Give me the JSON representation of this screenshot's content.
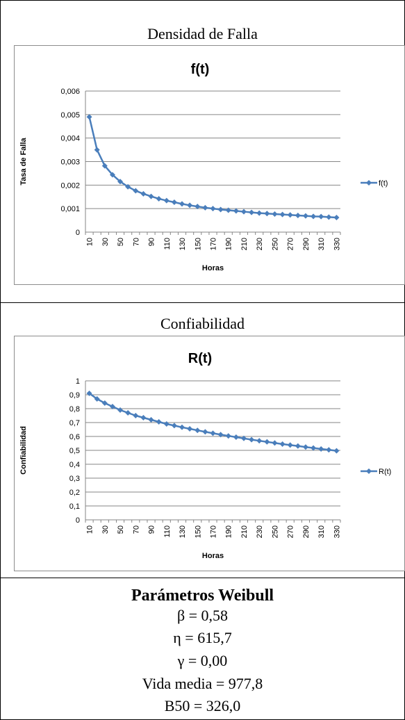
{
  "sections": {
    "density_caption": "Densidad de Falla",
    "reliability_caption": "Confiabilidad"
  },
  "parameters": {
    "title": "Parámetros Weibull",
    "beta": "β = 0,58",
    "eta": "η = 615,7",
    "gamma": "γ = 0,00",
    "mean_life": "Vida media = 977,8",
    "b50": "B50 = 326,0"
  },
  "colors": {
    "series": "#4a7ebb",
    "grid": "#868686",
    "axis": "#868686"
  },
  "chart_data": [
    {
      "type": "line",
      "title": "f(t)",
      "xlabel": "Horas",
      "ylabel": "Tasa de Falla",
      "legend": "right",
      "grid": true,
      "ylim": [
        0,
        0.006
      ],
      "yticks": [
        0,
        0.001,
        0.002,
        0.003,
        0.004,
        0.005,
        0.006
      ],
      "ytick_labels": [
        "0",
        "0,001",
        "0,002",
        "0,003",
        "0,004",
        "0,005",
        "0,006"
      ],
      "x": [
        10,
        20,
        30,
        40,
        50,
        60,
        70,
        80,
        90,
        100,
        110,
        120,
        130,
        140,
        150,
        160,
        170,
        180,
        190,
        200,
        210,
        220,
        230,
        240,
        250,
        260,
        270,
        280,
        290,
        300,
        310,
        320,
        330
      ],
      "xtick_labels": [
        "10",
        "30",
        "50",
        "70",
        "90",
        "110",
        "130",
        "150",
        "170",
        "190",
        "210",
        "230",
        "250",
        "270",
        "290",
        "310",
        "330"
      ],
      "series": [
        {
          "name": "f(t)",
          "values": [
            0.0049,
            0.0035,
            0.00282,
            0.00244,
            0.00215,
            0.00193,
            0.00176,
            0.00163,
            0.00152,
            0.00142,
            0.00134,
            0.00127,
            0.0012,
            0.00114,
            0.00109,
            0.00104,
            0.001,
            0.00096,
            0.00093,
            0.0009,
            0.00087,
            0.00084,
            0.00081,
            0.00079,
            0.00077,
            0.00075,
            0.00073,
            0.00071,
            0.00069,
            0.00067,
            0.00066,
            0.00064,
            0.00062
          ]
        }
      ]
    },
    {
      "type": "line",
      "title": "R(t)",
      "xlabel": "Horas",
      "ylabel": "Confiabilidad",
      "legend": "right",
      "grid": true,
      "ylim": [
        0,
        1
      ],
      "yticks": [
        0,
        0.1,
        0.2,
        0.3,
        0.4,
        0.5,
        0.6,
        0.7,
        0.8,
        0.9,
        1
      ],
      "ytick_labels": [
        "0",
        "0,1",
        "0,2",
        "0,3",
        "0,4",
        "0,5",
        "0,6",
        "0,7",
        "0,8",
        "0,9",
        "1"
      ],
      "x": [
        10,
        20,
        30,
        40,
        50,
        60,
        70,
        80,
        90,
        100,
        110,
        120,
        130,
        140,
        150,
        160,
        170,
        180,
        190,
        200,
        210,
        220,
        230,
        240,
        250,
        260,
        270,
        280,
        290,
        300,
        310,
        320,
        330
      ],
      "xtick_labels": [
        "10",
        "30",
        "50",
        "70",
        "90",
        "110",
        "130",
        "150",
        "170",
        "190",
        "210",
        "230",
        "250",
        "270",
        "290",
        "310",
        "330"
      ],
      "series": [
        {
          "name": "R(t)",
          "values": [
            0.91,
            0.87,
            0.84,
            0.815,
            0.79,
            0.77,
            0.75,
            0.735,
            0.72,
            0.705,
            0.69,
            0.678,
            0.666,
            0.655,
            0.644,
            0.633,
            0.623,
            0.613,
            0.604,
            0.595,
            0.586,
            0.577,
            0.569,
            0.561,
            0.553,
            0.545,
            0.538,
            0.531,
            0.524,
            0.517,
            0.51,
            0.504,
            0.497
          ]
        }
      ]
    }
  ]
}
